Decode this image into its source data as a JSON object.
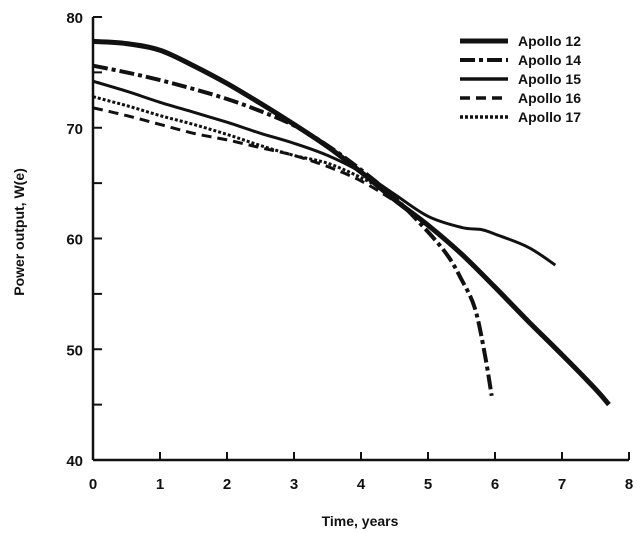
{
  "chart_data": {
    "type": "line",
    "title": "",
    "xlabel": "Time, years",
    "ylabel": "Power output, W(e)",
    "xlim": [
      0,
      8
    ],
    "ylim": [
      40,
      80
    ],
    "x_ticks": [
      "0",
      "1",
      "2",
      "3",
      "4",
      "5",
      "6",
      "7",
      "8"
    ],
    "y_ticks": [
      "40",
      "50",
      "60",
      "70",
      "80"
    ],
    "grid": false,
    "legend_position": "top-right",
    "color": "#111111",
    "series": [
      {
        "name": "Apollo 12",
        "dash": "solid-heavy",
        "points": [
          [
            0,
            77.8
          ],
          [
            0.5,
            77.6
          ],
          [
            1,
            77.0
          ],
          [
            1.5,
            75.6
          ],
          [
            2,
            74.0
          ],
          [
            2.5,
            72.2
          ],
          [
            3,
            70.3
          ],
          [
            3.5,
            68.3
          ],
          [
            4,
            66.0
          ],
          [
            4.5,
            63.5
          ],
          [
            5,
            61.2
          ],
          [
            5.5,
            58.6
          ],
          [
            6,
            55.6
          ],
          [
            6.5,
            52.5
          ],
          [
            7,
            49.5
          ],
          [
            7.5,
            46.4
          ],
          [
            7.7,
            45.0
          ]
        ]
      },
      {
        "name": "Apollo 14",
        "dash": "dash-dot-heavy",
        "points": [
          [
            0,
            75.6
          ],
          [
            0.5,
            75.0
          ],
          [
            1,
            74.3
          ],
          [
            1.5,
            73.5
          ],
          [
            2,
            72.6
          ],
          [
            2.5,
            71.5
          ],
          [
            3,
            70.2
          ],
          [
            3.5,
            68.4
          ],
          [
            4,
            66.2
          ],
          [
            4.5,
            63.7
          ],
          [
            5,
            60.6
          ],
          [
            5.3,
            58.4
          ],
          [
            5.5,
            56.3
          ],
          [
            5.7,
            53.7
          ],
          [
            5.85,
            49.5
          ],
          [
            5.95,
            45.8
          ]
        ]
      },
      {
        "name": "Apollo 15",
        "dash": "solid",
        "points": [
          [
            0,
            74.2
          ],
          [
            0.5,
            73.3
          ],
          [
            1,
            72.3
          ],
          [
            1.5,
            71.4
          ],
          [
            2,
            70.5
          ],
          [
            2.5,
            69.5
          ],
          [
            3,
            68.6
          ],
          [
            3.5,
            67.5
          ],
          [
            4,
            66.0
          ],
          [
            4.5,
            64.0
          ],
          [
            5,
            62.0
          ],
          [
            5.5,
            61.0
          ],
          [
            5.8,
            60.8
          ],
          [
            6,
            60.4
          ],
          [
            6.5,
            59.2
          ],
          [
            6.9,
            57.6
          ]
        ]
      },
      {
        "name": "Apollo 16",
        "dash": "dashed",
        "points": [
          [
            0,
            71.8
          ],
          [
            0.5,
            71.1
          ],
          [
            1,
            70.3
          ],
          [
            1.5,
            69.5
          ],
          [
            2,
            68.9
          ],
          [
            2.5,
            68.2
          ],
          [
            3,
            67.5
          ],
          [
            3.5,
            66.5
          ],
          [
            4,
            65.2
          ],
          [
            4.5,
            63.4
          ]
        ]
      },
      {
        "name": "Apollo 17",
        "dash": "fine-dashed",
        "points": [
          [
            0,
            72.8
          ],
          [
            0.5,
            72.0
          ],
          [
            1,
            71.1
          ],
          [
            1.5,
            70.3
          ],
          [
            2,
            69.4
          ],
          [
            2.5,
            68.4
          ],
          [
            3,
            67.5
          ],
          [
            3.5,
            66.8
          ],
          [
            4,
            65.5
          ],
          [
            4.5,
            63.9
          ]
        ]
      }
    ]
  }
}
